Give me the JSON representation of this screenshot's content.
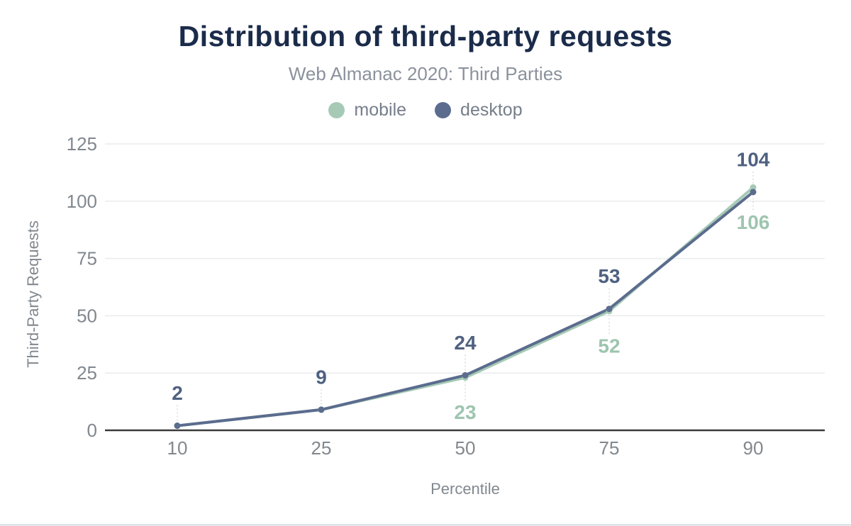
{
  "chart_data": {
    "type": "line",
    "title": "Distribution of third-party requests",
    "subtitle": "Web Almanac 2020: Third Parties",
    "xlabel": "Percentile",
    "ylabel": "Third-Party Requests",
    "categories": [
      "10",
      "25",
      "50",
      "75",
      "90"
    ],
    "y_ticks": [
      "0",
      "25",
      "50",
      "75",
      "100",
      "125"
    ],
    "ylim": [
      0,
      125
    ],
    "grid": "horizontal-only",
    "legend_position": "top-center",
    "series": [
      {
        "name": "mobile",
        "color": "#a6cab6",
        "label_color": "#9ec5af",
        "values": [
          2,
          9,
          23,
          52,
          106
        ],
        "labels": [
          null,
          null,
          "23",
          "52",
          "106"
        ]
      },
      {
        "name": "desktop",
        "color": "#5b6c8e",
        "label_color": "#4f6181",
        "values": [
          2,
          9,
          24,
          53,
          104
        ],
        "labels": [
          "2",
          "9",
          "24",
          "53",
          "104"
        ]
      }
    ]
  },
  "colors": {
    "background": "#ffffff",
    "title": "#1b2b4a",
    "subtitle": "#8b929c",
    "legend_text": "#757e8a",
    "axis_text": "#81888f",
    "gridline": "#eaebed",
    "axis_line": "#3a3a3a",
    "leader_line": "#d9dde1",
    "bottom_border": "#ccd0d4"
  }
}
